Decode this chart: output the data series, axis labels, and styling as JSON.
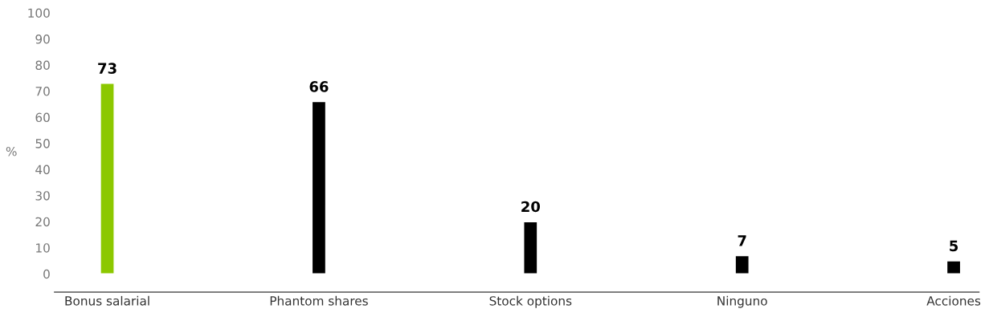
{
  "chart_data": {
    "type": "bar",
    "categories": [
      "Bonus salarial",
      "Phantom shares",
      "Stock options",
      "Ninguno",
      "Acciones"
    ],
    "values": [
      73,
      66,
      20,
      7,
      5
    ],
    "colors": [
      "#8cc800",
      "#000000",
      "#000000",
      "#000000",
      "#000000"
    ],
    "ylabel": "%",
    "ylim": [
      -7,
      100
    ],
    "yticks": [
      0,
      10,
      20,
      30,
      40,
      50,
      60,
      70,
      80,
      90,
      100
    ],
    "grid": false,
    "legend": false,
    "data_labels": true
  }
}
